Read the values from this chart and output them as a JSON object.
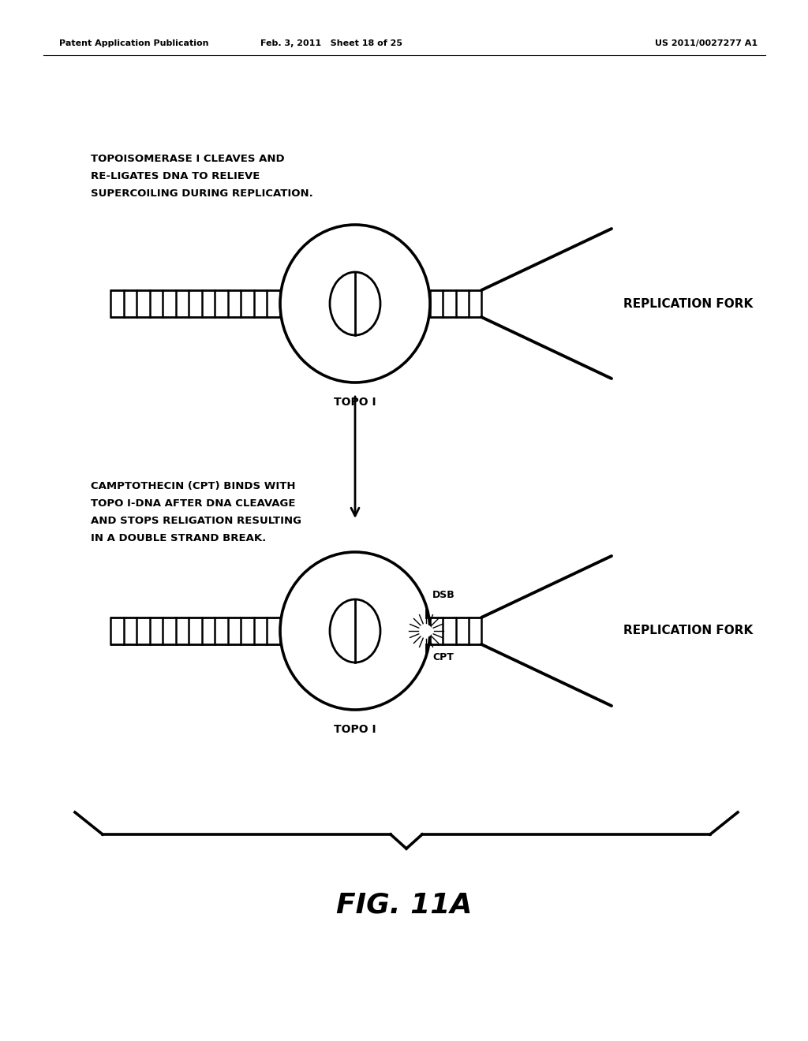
{
  "bg_color": "#ffffff",
  "header_left": "Patent Application Publication",
  "header_mid": "Feb. 3, 2011   Sheet 18 of 25",
  "header_right": "US 2011/0027277 A1",
  "text1_lines": [
    "TOPOISOMERASE I CLEAVES AND",
    "RE-LIGATES DNA TO RELIEVE",
    "SUPERCOILING DURING REPLICATION."
  ],
  "text2_lines": [
    "CAMPTOTHECIN (CPT) BINDS WITH",
    "TOPO I-DNA AFTER DNA CLEAVAGE",
    "AND STOPS RELIGATION RESULTING",
    "IN A DOUBLE STRAND BREAK."
  ],
  "label_replication_fork": "REPLICATION FORK",
  "label_topo": "TOPO I",
  "label_dsb": "DSB",
  "label_cpt": "CPT",
  "fig_label": "FIG. 11A",
  "line_color": "#000000"
}
